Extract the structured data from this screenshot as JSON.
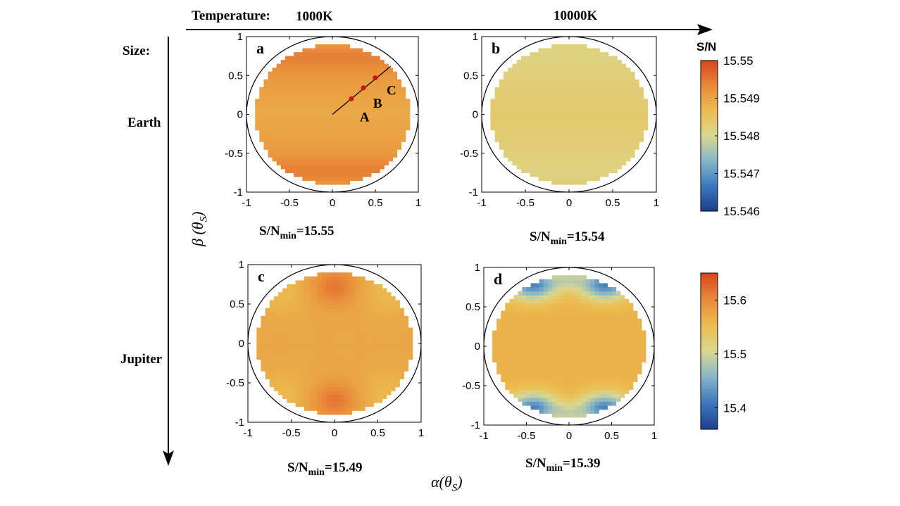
{
  "header": {
    "temperature_label": "Temperature:",
    "temp_1": "1000K",
    "temp_2": "10000K",
    "size_label": "Size:",
    "size_1": "Earth",
    "size_2": "Jupiter"
  },
  "axes": {
    "ylabel_symbol": "β (θ",
    "ylabel_sub": "S",
    "ylabel_close": ")",
    "xlabel_symbol": "α(θ",
    "xlabel_sub": "S",
    "xlabel_close": ")"
  },
  "colors": {
    "colormap_stops": [
      "#1d3f8a",
      "#3a78bd",
      "#86b5c8",
      "#d9d892",
      "#ecbd4f",
      "#e88a3a",
      "#d9441d"
    ],
    "circle_outline": "#000000",
    "marker": "#d01010"
  },
  "chart_data": [
    {
      "type": "heatmap",
      "panel_letter": "a",
      "xlim": [
        -1,
        1
      ],
      "ylim": [
        -1,
        1
      ],
      "xticks": [
        "-1",
        "-0.5",
        "0",
        "0.5",
        "1"
      ],
      "yticks": [
        "1",
        "0.5",
        "0",
        "-0.5",
        "-1"
      ],
      "colorbar_title": "S/N",
      "colorbar_range": [
        15.546,
        15.55
      ],
      "colorbar_ticks": [
        "15.55",
        "15.549",
        "15.548",
        "15.547",
        "15.546"
      ],
      "min_label": "S/N",
      "min_sub": "min",
      "min_value": "=15.55",
      "field": "earth_cool",
      "annotation_line": {
        "from": [
          0,
          0
        ],
        "to": [
          0.68,
          0.62
        ]
      },
      "points": [
        {
          "label": "A",
          "x": 0.22,
          "y": 0.2
        },
        {
          "label": "B",
          "x": 0.36,
          "y": 0.34
        },
        {
          "label": "C",
          "x": 0.5,
          "y": 0.47
        }
      ]
    },
    {
      "type": "heatmap",
      "panel_letter": "b",
      "xlim": [
        -1,
        1
      ],
      "ylim": [
        -1,
        1
      ],
      "xticks": [
        "-1",
        "-0.5",
        "0",
        "0.5",
        "1"
      ],
      "yticks": [
        "1",
        "0.5",
        "0",
        "-0.5",
        "-1"
      ],
      "colorbar_range": [
        15.546,
        15.55
      ],
      "min_label": "S/N",
      "min_sub": "min",
      "min_value": "=15.54",
      "field": "earth_hot"
    },
    {
      "type": "heatmap",
      "panel_letter": "c",
      "xlim": [
        -1,
        1
      ],
      "ylim": [
        -1,
        1
      ],
      "xticks": [
        "-1",
        "-0.5",
        "0",
        "0.5",
        "1"
      ],
      "yticks": [
        "1",
        "0.5",
        "0",
        "-0.5",
        "-1"
      ],
      "colorbar_range": [
        15.36,
        15.65
      ],
      "colorbar_ticks": [
        "15.6",
        "15.5",
        "15.4"
      ],
      "min_label": "S/N",
      "min_sub": "min",
      "min_value": "=15.49",
      "field": "jupiter_cool"
    },
    {
      "type": "heatmap",
      "panel_letter": "d",
      "xlim": [
        -1,
        1
      ],
      "ylim": [
        -1,
        1
      ],
      "xticks": [
        "-1",
        "-0.5",
        "0",
        "0.5",
        "1"
      ],
      "yticks": [
        "1",
        "0.5",
        "0",
        "-0.5",
        "-1"
      ],
      "colorbar_range": [
        15.36,
        15.65
      ],
      "min_label": "S/N",
      "min_sub": "min",
      "min_value": "=15.39",
      "field": "jupiter_hot"
    }
  ]
}
